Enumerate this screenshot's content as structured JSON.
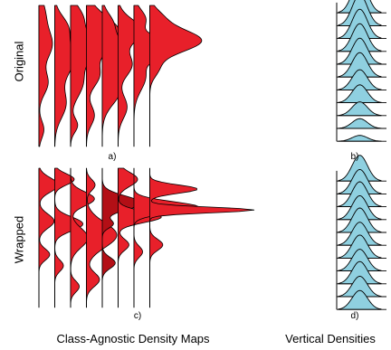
{
  "row_labels": {
    "top": "Original",
    "bottom": "Wrapped"
  },
  "panel_labels": {
    "a": "a)",
    "b": "b)",
    "c": "c)",
    "d": "d)"
  },
  "captions": {
    "left": "Class-Agnostic Density Maps",
    "right": "Vertical Densities"
  },
  "colors": {
    "red_fill": "#e8202a",
    "red_dark": "#b30f16",
    "blue_fill": "#8fd0e0",
    "stroke": "#000000"
  },
  "panel_a": {
    "columns": [
      {
        "bumps": [
          [
            0.06,
            0.1,
            0.3
          ],
          [
            0.28,
            0.1,
            0.65
          ],
          [
            0.55,
            0.08,
            0.45
          ],
          [
            0.88,
            0.06,
            0.25
          ]
        ]
      },
      {
        "bumps": [
          [
            0.15,
            0.08,
            0.55
          ],
          [
            0.38,
            0.12,
            0.95
          ],
          [
            0.7,
            0.1,
            0.55
          ]
        ]
      },
      {
        "bumps": [
          [
            0.08,
            0.08,
            0.55
          ],
          [
            0.3,
            0.1,
            1.2
          ],
          [
            0.55,
            0.1,
            0.6
          ],
          [
            0.85,
            0.05,
            0.35
          ]
        ]
      },
      {
        "bumps": [
          [
            0.2,
            0.12,
            1.7
          ],
          [
            0.5,
            0.08,
            0.6
          ],
          [
            0.78,
            0.07,
            0.4
          ]
        ]
      },
      {
        "bumps": [
          [
            0.12,
            0.07,
            0.45
          ],
          [
            0.33,
            0.1,
            1.2
          ],
          [
            0.6,
            0.1,
            0.9
          ]
        ]
      },
      {
        "bumps": [
          [
            0.18,
            0.08,
            1.2
          ],
          [
            0.42,
            0.08,
            0.7
          ],
          [
            0.72,
            0.08,
            0.45
          ]
        ]
      },
      {
        "bumps": [
          [
            0.1,
            0.07,
            0.6
          ],
          [
            0.3,
            0.06,
            2.4
          ],
          [
            0.5,
            0.1,
            0.6
          ]
        ]
      },
      {
        "bumps": [
          [
            0.08,
            0.06,
            0.5
          ],
          [
            0.25,
            0.08,
            2.6
          ],
          [
            0.45,
            0.06,
            0.4
          ]
        ]
      }
    ]
  },
  "panel_c": {
    "columns": [
      {
        "bumps": [
          [
            0.12,
            0.05,
            0.9
          ],
          [
            0.38,
            0.05,
            0.7
          ],
          [
            0.62,
            0.04,
            0.5
          ]
        ]
      },
      {
        "bumps": [
          [
            0.08,
            0.04,
            0.9
          ],
          [
            0.4,
            0.05,
            1.3
          ],
          [
            0.7,
            0.04,
            0.4
          ]
        ]
      },
      {
        "bumps": [
          [
            0.22,
            0.05,
            1.1
          ],
          [
            0.5,
            0.07,
            0.8
          ],
          [
            0.85,
            0.04,
            0.4
          ]
        ]
      },
      {
        "bumps": [
          [
            0.12,
            0.04,
            0.4
          ],
          [
            0.48,
            0.09,
            1.4
          ],
          [
            0.8,
            0.05,
            0.6
          ]
        ]
      },
      {
        "bumps": [
          [
            0.25,
            0.05,
            1.8
          ],
          [
            0.4,
            0.03,
            0.5
          ],
          [
            0.68,
            0.04,
            0.6
          ]
        ]
      },
      {
        "bumps": [
          [
            0.08,
            0.05,
            0.9
          ],
          [
            0.35,
            0.04,
            2.0
          ],
          [
            0.55,
            0.04,
            0.5
          ]
        ]
      },
      {
        "bumps": [
          [
            0.28,
            0.04,
            3.0
          ],
          [
            0.6,
            0.04,
            0.4
          ]
        ]
      },
      {
        "bumps": [
          [
            0.15,
            0.03,
            2.2
          ],
          [
            0.3,
            0.02,
            4.8
          ],
          [
            0.55,
            0.04,
            0.6
          ]
        ]
      }
    ],
    "darker_columns": [
      4
    ]
  },
  "panel_b": {
    "peaks": [
      1.0,
      0.95,
      0.9,
      0.85,
      0.8,
      0.75,
      0.62,
      0.55,
      0.42,
      0.3,
      0.18
    ]
  },
  "panel_d": {
    "peaks": [
      0.95,
      0.9,
      0.92,
      0.88,
      0.9,
      0.85,
      0.85,
      0.8,
      0.82,
      0.75,
      0.7
    ]
  }
}
